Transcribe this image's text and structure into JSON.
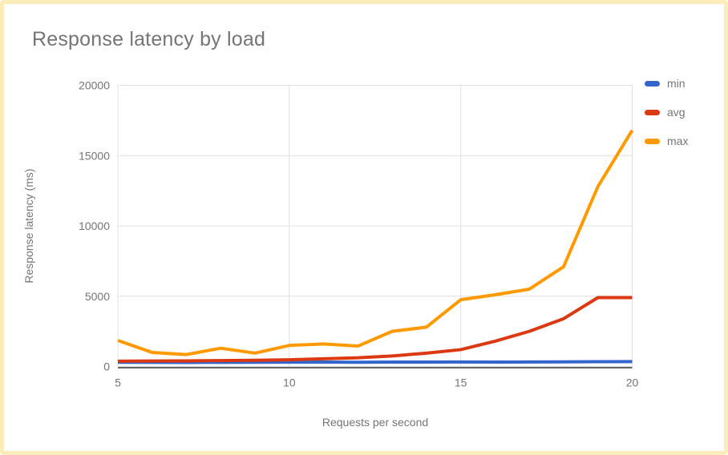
{
  "page": {
    "background": "#FFFFFF",
    "border_color": "#FAEDB8"
  },
  "chart_data": {
    "type": "line",
    "title": "Response latency by load",
    "xlabel": "Requests per second",
    "ylabel": "Response latency (ms)",
    "x": [
      5,
      6,
      7,
      8,
      9,
      10,
      11,
      12,
      13,
      14,
      15,
      16,
      17,
      18,
      19,
      20
    ],
    "series": [
      {
        "name": "min",
        "color": "#3366CC",
        "values": [
          300,
          290,
          285,
          295,
          300,
          305,
          310,
          300,
          310,
          315,
          320,
          310,
          320,
          330,
          340,
          350
        ]
      },
      {
        "name": "avg",
        "color": "#DC3912",
        "values": [
          380,
          390,
          400,
          420,
          440,
          480,
          550,
          620,
          750,
          950,
          1200,
          1800,
          2500,
          3400,
          4900,
          4900
        ]
      },
      {
        "name": "max",
        "color": "#FF9900",
        "values": [
          1850,
          1000,
          850,
          1300,
          950,
          1500,
          1600,
          1450,
          2500,
          2800,
          4750,
          5100,
          5500,
          7100,
          12800,
          16800
        ]
      }
    ],
    "xlim": [
      5,
      20
    ],
    "ylim": [
      0,
      20000
    ],
    "x_ticks": [
      5,
      10,
      15,
      20
    ],
    "y_ticks": [
      0,
      5000,
      10000,
      15000,
      20000
    ],
    "grid": true,
    "legend_position": "right",
    "colors": {
      "grid": "#E0E0E0",
      "axis": "#333333",
      "tick_text": "#757575",
      "title_text": "#757575"
    }
  }
}
